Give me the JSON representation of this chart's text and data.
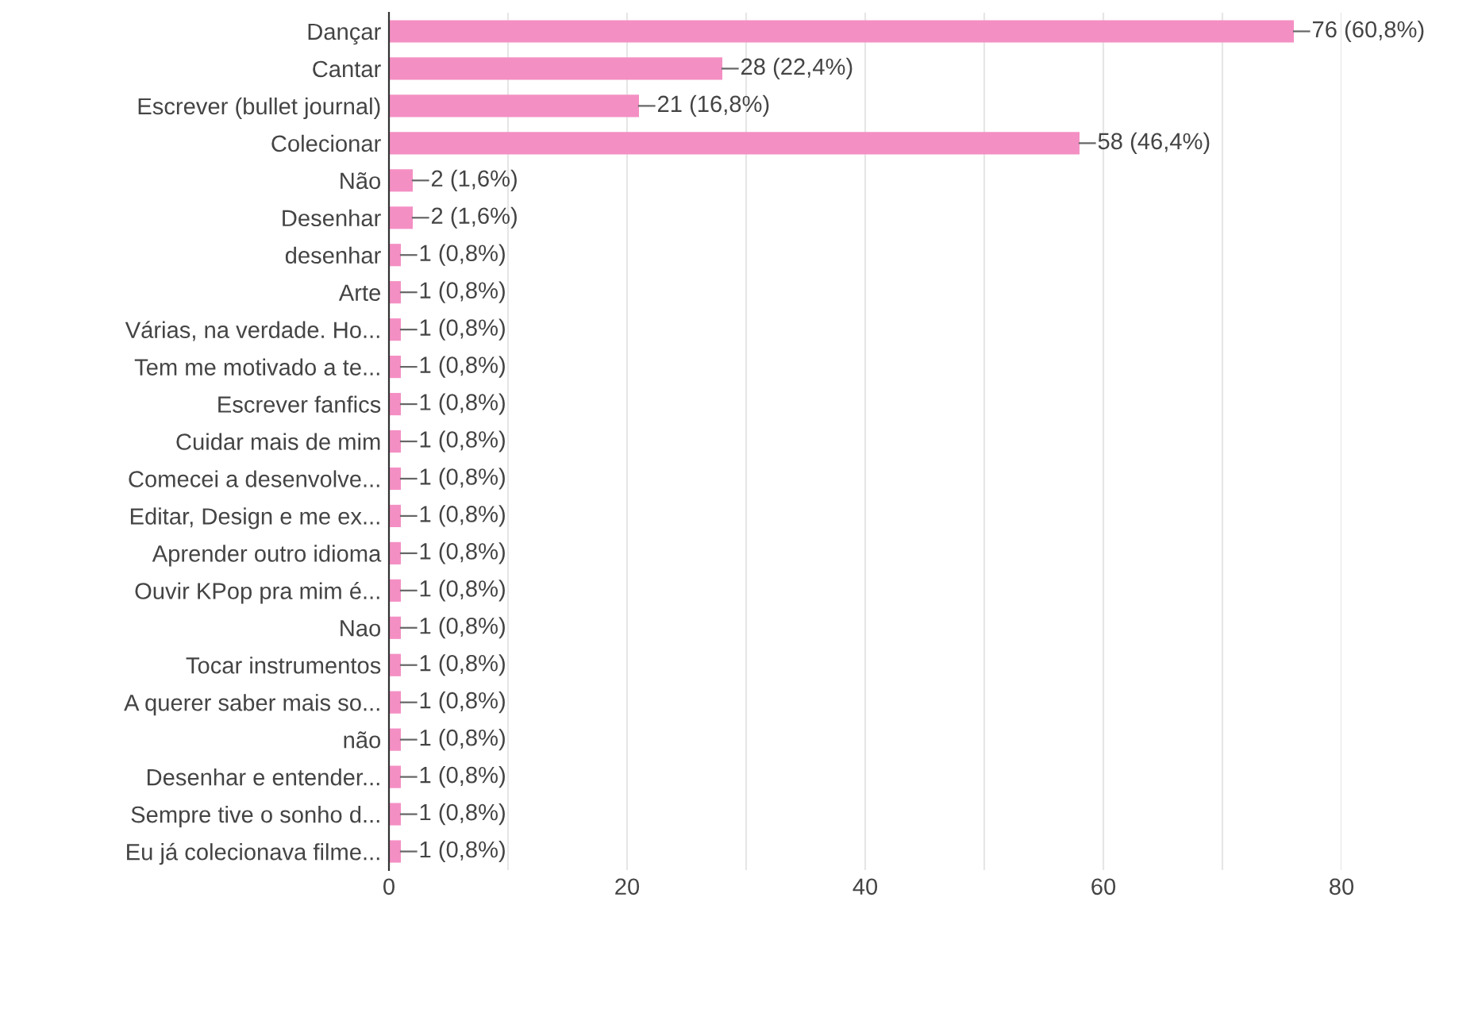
{
  "chart_data": {
    "type": "bar",
    "orientation": "horizontal",
    "categories": [
      "Dançar",
      "Cantar",
      "Escrever (bullet journal)",
      "Colecionar",
      "Não",
      "Desenhar",
      "desenhar",
      "Arte",
      "Várias, na verdade. Ho...",
      "Tem me motivado a te...",
      "Escrever fanfics",
      "Cuidar mais de mim",
      "Comecei a desenvolve...",
      "Editar, Design e me ex...",
      "Aprender outro idioma",
      "Ouvir KPop pra mim é...",
      "Nao",
      "Tocar instrumentos",
      "A querer saber mais so...",
      "não",
      "Desenhar e entender...",
      "Sempre tive o sonho d...",
      "Eu já colecionava filme..."
    ],
    "values": [
      76,
      28,
      21,
      58,
      2,
      2,
      1,
      1,
      1,
      1,
      1,
      1,
      1,
      1,
      1,
      1,
      1,
      1,
      1,
      1,
      1,
      1,
      1
    ],
    "value_labels": [
      "76 (60,8%)",
      "28 (22,4%)",
      "21 (16,8%)",
      "58 (46,4%)",
      "2 (1,6%)",
      "2 (1,6%)",
      "1 (0,8%)",
      "1 (0,8%)",
      "1 (0,8%)",
      "1 (0,8%)",
      "1 (0,8%)",
      "1 (0,8%)",
      "1 (0,8%)",
      "1 (0,8%)",
      "1 (0,8%)",
      "1 (0,8%)",
      "1 (0,8%)",
      "1 (0,8%)",
      "1 (0,8%)",
      "1 (0,8%)",
      "1 (0,8%)",
      "1 (0,8%)",
      "1 (0,8%)"
    ],
    "color": "#f48fc4",
    "xlim": [
      0,
      80
    ],
    "xticks": [
      0,
      {
        "value": 10,
        "label": null
      },
      20,
      {
        "value": 30,
        "label": null
      },
      40,
      {
        "value": 50,
        "label": null
      },
      60,
      {
        "value": 70,
        "label": null
      },
      80
    ],
    "grid": "x"
  }
}
